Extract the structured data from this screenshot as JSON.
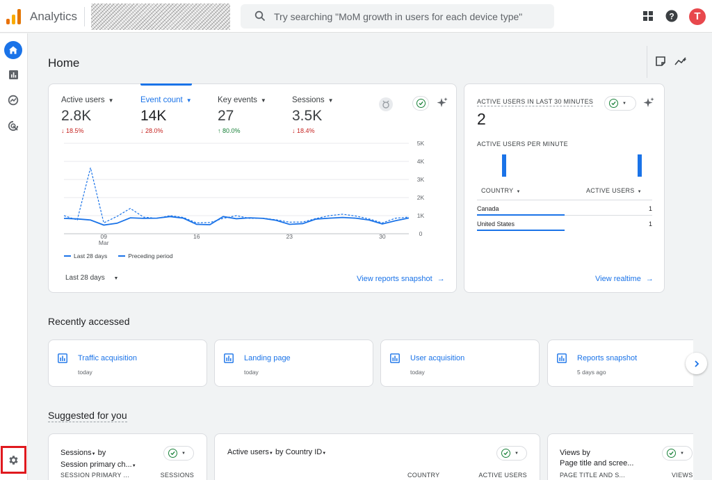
{
  "app": {
    "title": "Analytics"
  },
  "search": {
    "placeholder": "Try searching \"MoM growth in users for each device type\""
  },
  "avatar": {
    "initial": "T"
  },
  "page": {
    "title": "Home"
  },
  "overview": {
    "metrics": [
      {
        "label": "Active users",
        "value": "2.8K",
        "change": "18.5%",
        "direction": "down"
      },
      {
        "label": "Event count",
        "value": "14K",
        "change": "28.0%",
        "direction": "down",
        "selected": true
      },
      {
        "label": "Key events",
        "value": "27",
        "change": "80.0%",
        "direction": "up"
      },
      {
        "label": "Sessions",
        "value": "3.5K",
        "change": "18.4%",
        "direction": "down"
      }
    ],
    "date_range": "Last 28 days",
    "link": "View reports snapshot"
  },
  "chart_data": {
    "type": "line",
    "x_ticks": [
      {
        "label": "09",
        "sublabel": "Mar",
        "index": 3
      },
      {
        "label": "16",
        "index": 10
      },
      {
        "label": "23",
        "index": 17
      },
      {
        "label": "30",
        "index": 24
      }
    ],
    "y_ticks": [
      "5K",
      "4K",
      "3K",
      "2K",
      "1K",
      "0"
    ],
    "ylim": [
      0,
      5000
    ],
    "series": [
      {
        "name": "Last 28 days",
        "style": "solid",
        "color": "#1a73e8",
        "values": [
          850,
          820,
          760,
          480,
          580,
          880,
          850,
          860,
          950,
          860,
          520,
          500,
          950,
          830,
          880,
          850,
          740,
          520,
          560,
          810,
          860,
          900,
          860,
          760,
          540,
          720,
          870
        ]
      },
      {
        "name": "Preceding period",
        "style": "dashed",
        "color": "#1a73e8",
        "values": [
          1000,
          760,
          3650,
          600,
          960,
          1400,
          920,
          850,
          1000,
          900,
          600,
          620,
          850,
          1000,
          850,
          860,
          770,
          640,
          650,
          840,
          1000,
          1080,
          980,
          820,
          600,
          860,
          920
        ]
      }
    ]
  },
  "realtime": {
    "title": "ACTIVE USERS IN LAST 30 MINUTES",
    "value": "2",
    "subtitle": "ACTIVE USERS PER MINUTE",
    "bars": [
      0,
      0,
      0,
      0,
      1,
      0,
      0,
      0,
      0,
      0,
      0,
      0,
      0,
      0,
      0,
      0,
      0,
      0,
      0,
      0,
      0,
      0,
      0,
      0,
      0,
      0,
      0,
      0,
      0,
      0,
      1,
      0
    ],
    "table": {
      "col1": "COUNTRY",
      "col2": "ACTIVE USERS",
      "rows": [
        {
          "country": "Canada",
          "users": "1"
        },
        {
          "country": "United States",
          "users": "1"
        }
      ]
    },
    "link": "View realtime"
  },
  "recent": {
    "title": "Recently accessed",
    "items": [
      {
        "title": "Traffic acquisition",
        "time": "today"
      },
      {
        "title": "Landing page",
        "time": "today"
      },
      {
        "title": "User acquisition",
        "time": "today"
      },
      {
        "title": "Reports snapshot",
        "time": "5 days ago"
      }
    ]
  },
  "suggested": {
    "title": "Suggested for you",
    "cards": [
      {
        "metric": "Sessions",
        "by": "by",
        "dimension": "Session primary ch...",
        "col1": "SESSION PRIMARY ...",
        "col2": "SESSIONS"
      },
      {
        "metric": "Active users",
        "by": "by",
        "dimension": "Country ID",
        "col1": "COUNTRY",
        "col2": "ACTIVE USERS"
      },
      {
        "metric": "Views",
        "by": "by",
        "dimension": "Page title and scree...",
        "col1": "PAGE TITLE AND S...",
        "col2": "VIEWS"
      }
    ]
  },
  "colors": {
    "primary": "#1a73e8",
    "down": "#c5221f",
    "up": "#188038",
    "avatar": "#e8484d",
    "highlight": "#e0191e"
  }
}
